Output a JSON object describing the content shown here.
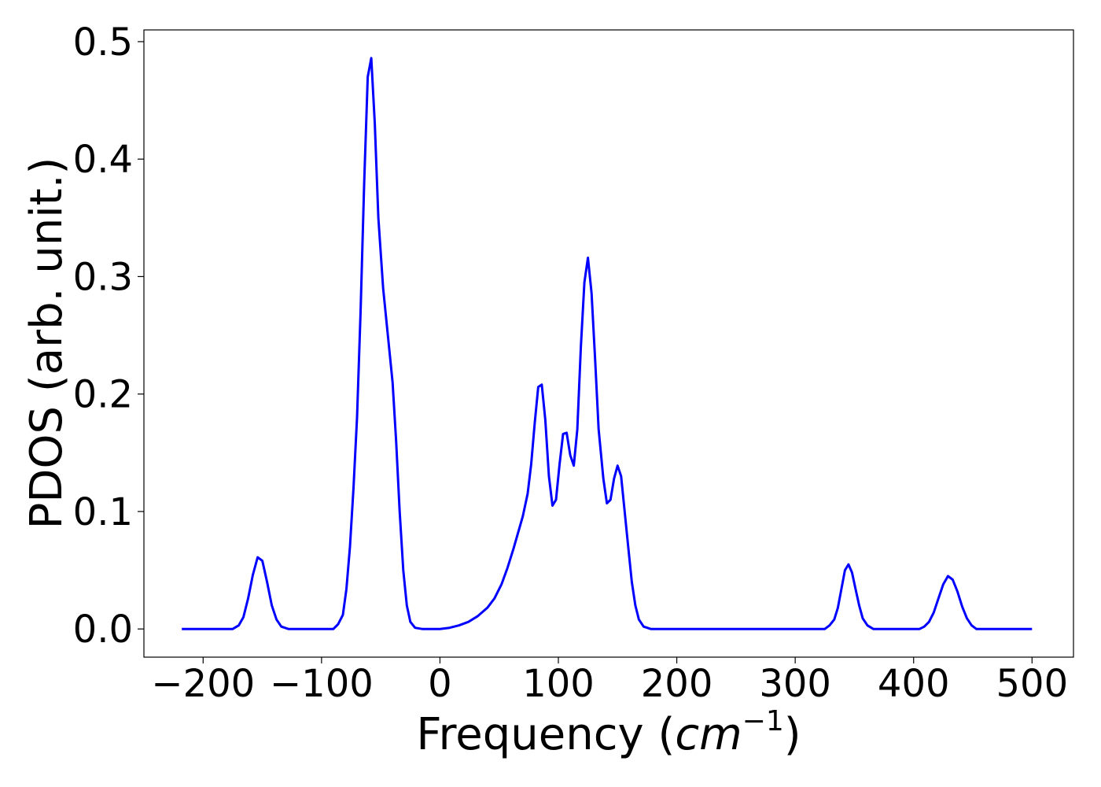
{
  "chart_data": {
    "type": "line",
    "title": "",
    "xlabel_text": "Frequency (",
    "xlabel_unit": "cm",
    "xlabel_exp": "−1",
    "xlabel_close": ")",
    "ylabel": "PDOS (arb. unit.)",
    "xlim": [
      -250,
      535
    ],
    "ylim": [
      -0.024,
      0.51
    ],
    "x_ticks": [
      -200,
      -100,
      0,
      100,
      200,
      300,
      400,
      500
    ],
    "x_tick_labels": [
      "−200",
      "−100",
      "0",
      "100",
      "200",
      "300",
      "400",
      "500"
    ],
    "y_ticks": [
      0.0,
      0.1,
      0.2,
      0.3,
      0.4,
      0.5
    ],
    "y_tick_labels": [
      "0.0",
      "0.1",
      "0.2",
      "0.3",
      "0.4",
      "0.5"
    ],
    "grid": false,
    "legend": "none",
    "series": [
      {
        "color": "#0000ff",
        "points": [
          [
            -218,
            0.0
          ],
          [
            -175,
            0.0
          ],
          [
            -170,
            0.003
          ],
          [
            -166,
            0.01
          ],
          [
            -162,
            0.026
          ],
          [
            -158,
            0.046
          ],
          [
            -154,
            0.061
          ],
          [
            -150,
            0.058
          ],
          [
            -146,
            0.04
          ],
          [
            -142,
            0.02
          ],
          [
            -138,
            0.008
          ],
          [
            -134,
            0.002
          ],
          [
            -128,
            0.0
          ],
          [
            -90,
            0.0
          ],
          [
            -86,
            0.004
          ],
          [
            -82,
            0.012
          ],
          [
            -79,
            0.034
          ],
          [
            -76,
            0.07
          ],
          [
            -73,
            0.12
          ],
          [
            -70,
            0.18
          ],
          [
            -67,
            0.27
          ],
          [
            -64,
            0.38
          ],
          [
            -61,
            0.47
          ],
          [
            -58,
            0.486
          ],
          [
            -55,
            0.43
          ],
          [
            -52,
            0.35
          ],
          [
            -48,
            0.29
          ],
          [
            -44,
            0.25
          ],
          [
            -40,
            0.21
          ],
          [
            -37,
            0.16
          ],
          [
            -34,
            0.1
          ],
          [
            -31,
            0.05
          ],
          [
            -28,
            0.02
          ],
          [
            -25,
            0.006
          ],
          [
            -21,
            0.001
          ],
          [
            -15,
            0.0
          ],
          [
            0,
            0.0
          ],
          [
            8,
            0.001
          ],
          [
            16,
            0.003
          ],
          [
            24,
            0.006
          ],
          [
            32,
            0.011
          ],
          [
            40,
            0.018
          ],
          [
            46,
            0.026
          ],
          [
            52,
            0.038
          ],
          [
            57,
            0.052
          ],
          [
            62,
            0.068
          ],
          [
            66,
            0.082
          ],
          [
            70,
            0.096
          ],
          [
            74,
            0.115
          ],
          [
            77,
            0.14
          ],
          [
            80,
            0.175
          ],
          [
            83,
            0.206
          ],
          [
            86,
            0.208
          ],
          [
            89,
            0.178
          ],
          [
            92,
            0.13
          ],
          [
            95,
            0.105
          ],
          [
            98,
            0.11
          ],
          [
            101,
            0.14
          ],
          [
            104,
            0.166
          ],
          [
            107,
            0.167
          ],
          [
            110,
            0.148
          ],
          [
            113,
            0.139
          ],
          [
            116,
            0.17
          ],
          [
            119,
            0.24
          ],
          [
            122,
            0.295
          ],
          [
            125,
            0.316
          ],
          [
            128,
            0.286
          ],
          [
            131,
            0.23
          ],
          [
            134,
            0.17
          ],
          [
            138,
            0.128
          ],
          [
            141,
            0.107
          ],
          [
            144,
            0.11
          ],
          [
            147,
            0.128
          ],
          [
            150,
            0.139
          ],
          [
            153,
            0.13
          ],
          [
            156,
            0.1
          ],
          [
            159,
            0.07
          ],
          [
            162,
            0.04
          ],
          [
            165,
            0.02
          ],
          [
            168,
            0.008
          ],
          [
            172,
            0.002
          ],
          [
            178,
            0.0
          ],
          [
            325,
            0.0
          ],
          [
            329,
            0.003
          ],
          [
            333,
            0.008
          ],
          [
            336,
            0.018
          ],
          [
            339,
            0.034
          ],
          [
            342,
            0.05
          ],
          [
            345,
            0.055
          ],
          [
            348,
            0.048
          ],
          [
            351,
            0.034
          ],
          [
            354,
            0.02
          ],
          [
            357,
            0.009
          ],
          [
            361,
            0.003
          ],
          [
            366,
            0.0
          ],
          [
            405,
            0.0
          ],
          [
            409,
            0.002
          ],
          [
            413,
            0.006
          ],
          [
            417,
            0.014
          ],
          [
            421,
            0.026
          ],
          [
            425,
            0.038
          ],
          [
            429,
            0.045
          ],
          [
            433,
            0.042
          ],
          [
            437,
            0.032
          ],
          [
            441,
            0.019
          ],
          [
            445,
            0.009
          ],
          [
            449,
            0.003
          ],
          [
            453,
            0.0
          ],
          [
            500,
            0.0
          ]
        ]
      }
    ]
  }
}
